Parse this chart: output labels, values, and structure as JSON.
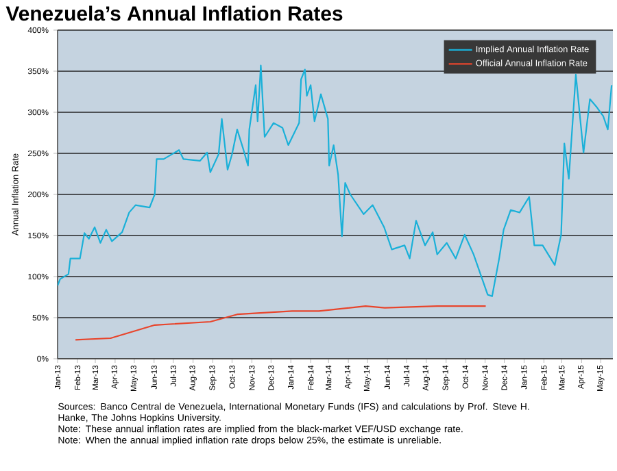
{
  "chart_data": {
    "type": "line",
    "title": "Venezuela’s Annual Inflation Rates",
    "ylabel": "Annual Inflation Rate",
    "xlim": [
      "2013-01-01",
      "2015-05-20"
    ],
    "xticks": [
      {
        "value": "2013-01",
        "label": "Jan-13"
      },
      {
        "value": "2013-02",
        "label": "Feb-13"
      },
      {
        "value": "2013-03",
        "label": "Mar-13"
      },
      {
        "value": "2013-04",
        "label": "Apr-13"
      },
      {
        "value": "2013-05",
        "label": "May-13"
      },
      {
        "value": "2013-06",
        "label": "Jun-13"
      },
      {
        "value": "2013-07",
        "label": "Jul-13"
      },
      {
        "value": "2013-08",
        "label": "Aug-13"
      },
      {
        "value": "2013-09",
        "label": "Sep-13"
      },
      {
        "value": "2013-10",
        "label": "Oct-13"
      },
      {
        "value": "2013-11",
        "label": "Nov-13"
      },
      {
        "value": "2013-12",
        "label": "Dec-13"
      },
      {
        "value": "2014-01",
        "label": "Jan-14"
      },
      {
        "value": "2014-02",
        "label": "Feb-14"
      },
      {
        "value": "2014-03",
        "label": "Mar-14"
      },
      {
        "value": "2014-04",
        "label": "Apr-14"
      },
      {
        "value": "2014-05",
        "label": "May-14"
      },
      {
        "value": "2014-06",
        "label": "Jun-14"
      },
      {
        "value": "2014-07",
        "label": "Jul-14"
      },
      {
        "value": "2014-08",
        "label": "Aug-14"
      },
      {
        "value": "2014-09",
        "label": "Sep-14"
      },
      {
        "value": "2014-10",
        "label": "Oct-14"
      },
      {
        "value": "2014-11",
        "label": "Nov-14"
      },
      {
        "value": "2014-12",
        "label": "Dec-14"
      },
      {
        "value": "2015-01",
        "label": "Jan-15"
      },
      {
        "value": "2015-02",
        "label": "Feb-15"
      },
      {
        "value": "2015-03",
        "label": "Mar-15"
      },
      {
        "value": "2015-04",
        "label": "Apr-15"
      },
      {
        "value": "2015-05",
        "label": "May-15"
      }
    ],
    "ylim": [
      0,
      400
    ],
    "yticks": [
      {
        "value": 0,
        "label": "0%"
      },
      {
        "value": 50,
        "label": "50%"
      },
      {
        "value": 100,
        "label": "100%"
      },
      {
        "value": 150,
        "label": "150%"
      },
      {
        "value": 200,
        "label": "200%"
      },
      {
        "value": 250,
        "label": "250%"
      },
      {
        "value": 300,
        "label": "300%"
      },
      {
        "value": 350,
        "label": "350%"
      },
      {
        "value": 400,
        "label": "400%"
      }
    ],
    "grid": "y",
    "legend": "top right",
    "series": [
      {
        "name": "Implied Annual Inflation Rate",
        "color": "#1ab0d8",
        "x": [
          "2013-01-01",
          "2013-01-05",
          "2013-01-18",
          "2013-01-21",
          "2013-02-05",
          "2013-02-12",
          "2013-02-19",
          "2013-02-28",
          "2013-03-09",
          "2013-03-18",
          "2013-03-27",
          "2013-04-12",
          "2013-04-23",
          "2013-05-03",
          "2013-05-25",
          "2013-06-02",
          "2013-06-05",
          "2013-06-16",
          "2013-07-10",
          "2013-07-17",
          "2013-08-12",
          "2013-08-23",
          "2013-08-28",
          "2013-09-10",
          "2013-09-15",
          "2013-09-24",
          "2013-10-01",
          "2013-10-09",
          "2013-10-19",
          "2013-10-26",
          "2013-10-28",
          "2013-11-07",
          "2013-11-10",
          "2013-11-15",
          "2013-11-21",
          "2013-12-05",
          "2013-12-19",
          "2013-12-28",
          "2014-01-14",
          "2014-01-17",
          "2014-01-23",
          "2014-01-26",
          "2014-02-01",
          "2014-02-07",
          "2014-02-17",
          "2014-02-28",
          "2014-03-02",
          "2014-03-09",
          "2014-03-16",
          "2014-03-22",
          "2014-03-27",
          "2014-04-04",
          "2014-04-25",
          "2014-05-09",
          "2014-05-27",
          "2014-06-08",
          "2014-06-28",
          "2014-07-06",
          "2014-07-16",
          "2014-07-30",
          "2014-08-11",
          "2014-08-18",
          "2014-09-02",
          "2014-09-16",
          "2014-09-30",
          "2014-10-14",
          "2014-11-05",
          "2014-11-12",
          "2014-11-23",
          "2014-11-30",
          "2014-12-11",
          "2014-12-25",
          "2015-01-09",
          "2015-01-17",
          "2015-01-30",
          "2015-02-18",
          "2015-02-28",
          "2015-03-05",
          "2015-03-12",
          "2015-03-23",
          "2015-04-04",
          "2015-04-14",
          "2015-04-25",
          "2015-05-05",
          "2015-05-12",
          "2015-05-18"
        ],
        "values": [
          89,
          97,
          103,
          122,
          122,
          153,
          146,
          160,
          141,
          157,
          143,
          154,
          178,
          187,
          184,
          200,
          243,
          243,
          254,
          243,
          241,
          251,
          227,
          249,
          292,
          230,
          249,
          279,
          254,
          235,
          279,
          333,
          289,
          357,
          270,
          287,
          281,
          260,
          287,
          340,
          352,
          320,
          333,
          289,
          322,
          292,
          235,
          260,
          224,
          149,
          214,
          200,
          176,
          187,
          160,
          133,
          138,
          122,
          168,
          138,
          154,
          127,
          141,
          122,
          151,
          127,
          78,
          76,
          122,
          157,
          181,
          178,
          197,
          138,
          138,
          114,
          151,
          262,
          219,
          346,
          251,
          316,
          306,
          295,
          279,
          333
        ]
      },
      {
        "name": "Official Annual Inflation Rate",
        "color": "#e8452c",
        "x": [
          "2013-01-29",
          "2013-03-25",
          "2013-06-02",
          "2013-08-28",
          "2013-10-09",
          "2014-01-03",
          "2014-02-14",
          "2014-04-28",
          "2014-05-28",
          "2014-08-18",
          "2014-11-02"
        ],
        "values": [
          23,
          25,
          41,
          45,
          54,
          58,
          58,
          64,
          62,
          64,
          64
        ]
      }
    ],
    "annotations": [
      "Sources: Banco Central de Venezuela, International Monetary Funds (IFS) and calculations by Prof. Steve H. Hanke, The Johns Hopkins University.",
      "Note: These annual inflation rates are implied from the black-market VEF/USD exchange rate.",
      "Note: When the annual implied inflation rate drops below 25%, the estimate is unreliable."
    ]
  }
}
